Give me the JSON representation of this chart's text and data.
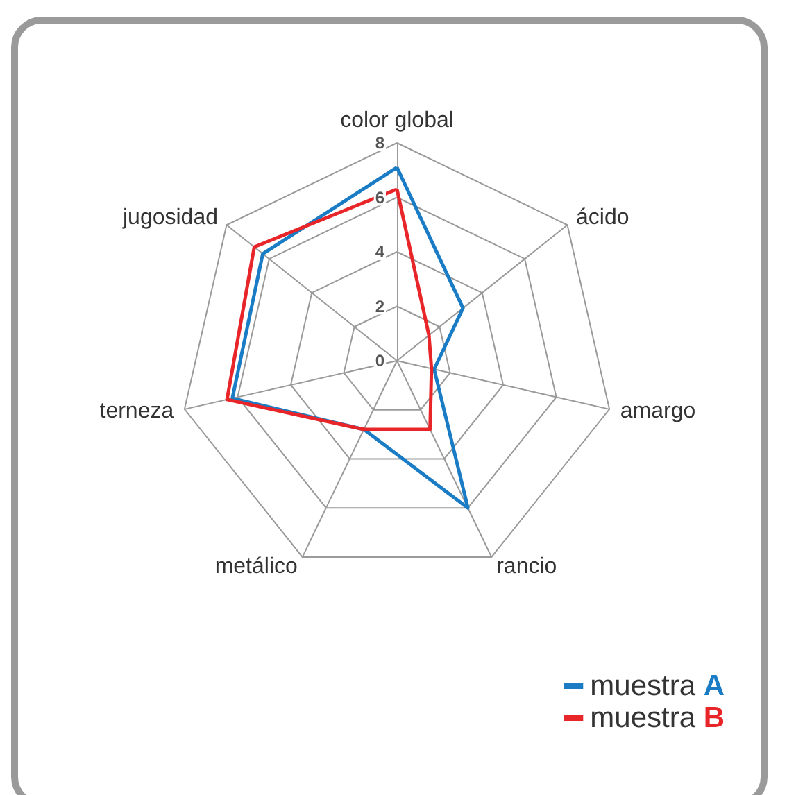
{
  "chart_data": {
    "type": "radar",
    "categories": [
      "color global",
      "ácido",
      "amargo",
      "rancio",
      "metálico",
      "terneza",
      "jugosidad"
    ],
    "series": [
      {
        "name": "muestra A",
        "color": "#1a7cc4",
        "values": [
          7.1,
          3.1,
          1.4,
          6.0,
          2.8,
          6.2,
          6.3
        ]
      },
      {
        "name": "muestra B",
        "color": "#e8262a",
        "values": [
          6.3,
          1.5,
          1.3,
          2.8,
          2.8,
          6.4,
          6.7
        ]
      }
    ],
    "ylim": [
      0,
      8
    ],
    "yticks": [
      0,
      2,
      4,
      6,
      8
    ],
    "grid": true,
    "legend": "bottom right",
    "marker": "none"
  }
}
